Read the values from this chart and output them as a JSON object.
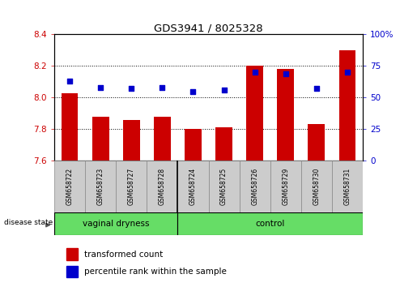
{
  "title": "GDS3941 / 8025328",
  "samples": [
    "GSM658722",
    "GSM658723",
    "GSM658727",
    "GSM658728",
    "GSM658724",
    "GSM658725",
    "GSM658726",
    "GSM658729",
    "GSM658730",
    "GSM658731"
  ],
  "red_values": [
    8.03,
    7.88,
    7.86,
    7.88,
    7.8,
    7.81,
    8.2,
    8.18,
    7.83,
    8.3
  ],
  "blue_values": [
    63,
    58,
    57,
    58,
    55,
    56,
    70,
    69,
    57,
    70
  ],
  "ymin": 7.6,
  "ymax": 8.4,
  "y2min": 0,
  "y2max": 100,
  "yticks": [
    7.6,
    7.8,
    8.0,
    8.2,
    8.4
  ],
  "y2ticks": [
    0,
    25,
    50,
    75,
    100
  ],
  "group_separator": 4,
  "group_labels": [
    "vaginal dryness",
    "control"
  ],
  "group_vd_count": 4,
  "group_ctrl_count": 6,
  "bar_color": "#cc0000",
  "dot_color": "#0000cc",
  "bar_width": 0.55,
  "tick_label_color_left": "#cc0000",
  "tick_label_color_right": "#0000cc",
  "legend_items": [
    "transformed count",
    "percentile rank within the sample"
  ],
  "base_value": 7.6,
  "green_color": "#66dd66",
  "label_bg_color": "#cccccc"
}
